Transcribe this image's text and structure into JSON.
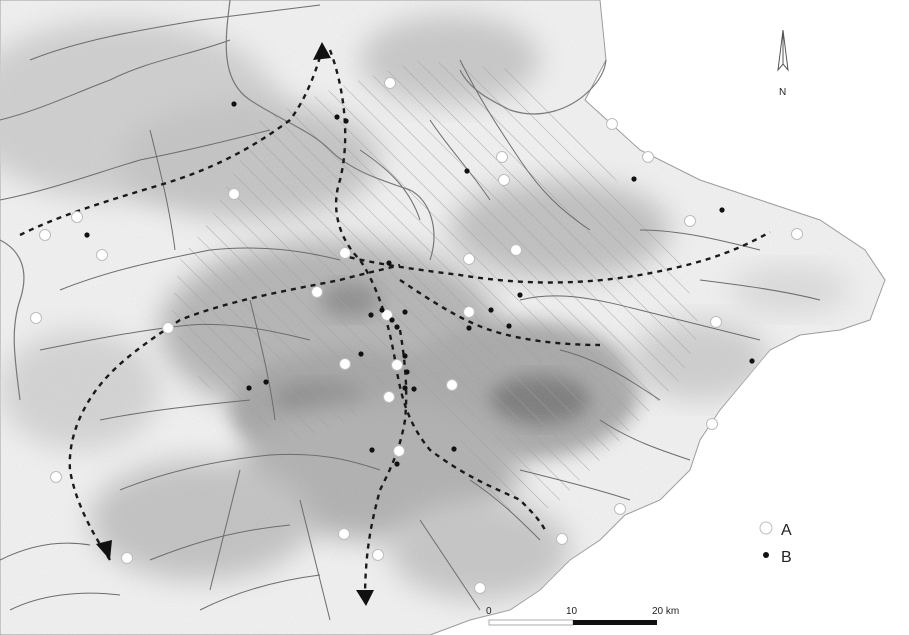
{
  "map": {
    "north_label": "N",
    "legend": [
      {
        "label": "A",
        "symbol": "open-circle"
      },
      {
        "label": "B",
        "symbol": "filled-dot"
      }
    ],
    "scale": {
      "labels": [
        "0",
        "10",
        "20 km"
      ]
    },
    "colors": {
      "sea": "#ffffff",
      "relief_light": "#eeeeee",
      "relief_mid": "#c9c9c9",
      "relief_dark": "#8c8c8c",
      "rivers": "#6c6c6c",
      "routes": "#1a1a1a",
      "hatch": "#a0a0a0"
    }
  }
}
